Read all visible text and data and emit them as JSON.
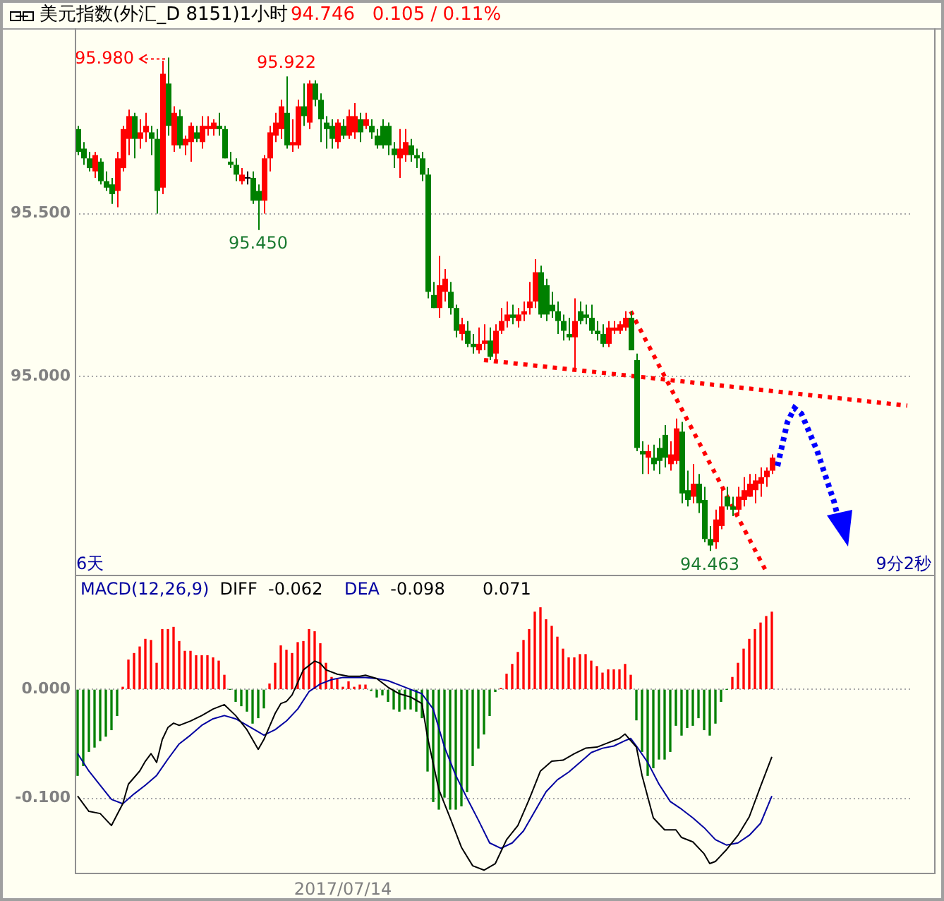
{
  "chart_data": [
    {
      "type": "candlestick",
      "title": "美元指数(外汇_D 8151)1小时",
      "subtitle": "94.746   0.105 / 0.11%",
      "categories": [
        null,
        null,
        null,
        null,
        null,
        null,
        null,
        null,
        null,
        null,
        null,
        null,
        null,
        null,
        null,
        null,
        null,
        null,
        null,
        null,
        null,
        null,
        null,
        null,
        null,
        null,
        null,
        null,
        null,
        null,
        null,
        null,
        null,
        null,
        null,
        null,
        null,
        null,
        null,
        null,
        null,
        null,
        null,
        null,
        null,
        null,
        null,
        null,
        null,
        null,
        null,
        null,
        null,
        null,
        null,
        null,
        null,
        null,
        null,
        null,
        null,
        null,
        null,
        null,
        null,
        null,
        null,
        null,
        null,
        null,
        null,
        null,
        null,
        null,
        null,
        null,
        null,
        null,
        null,
        null,
        null,
        null,
        null,
        null,
        null,
        null,
        null,
        null,
        null,
        null,
        null,
        null,
        null,
        null,
        null,
        null,
        null,
        null,
        null,
        null,
        null,
        null,
        null,
        null,
        null,
        null,
        null,
        null,
        null,
        null,
        null,
        null,
        null,
        null,
        null,
        null,
        null,
        null,
        null,
        null,
        null,
        null,
        null,
        null,
        null,
        null,
        null,
        null,
        null,
        null,
        null,
        null,
        null,
        null,
        null,
        null,
        null,
        null,
        null,
        null,
        null,
        null,
        null,
        null,
        null,
        null,
        null,
        null
      ],
      "ohlc": [
        [
          95.76,
          95.77,
          95.68,
          95.69
        ],
        [
          95.7,
          95.72,
          95.65,
          95.67
        ],
        [
          95.67,
          95.69,
          95.63,
          95.64
        ],
        [
          95.63,
          95.69,
          95.61,
          95.68
        ],
        [
          95.66,
          95.67,
          95.59,
          95.6
        ],
        [
          95.6,
          95.63,
          95.57,
          95.58
        ],
        [
          95.59,
          95.61,
          95.53,
          95.56
        ],
        [
          95.57,
          95.69,
          95.52,
          95.67
        ],
        [
          95.64,
          95.77,
          95.63,
          95.76
        ],
        [
          95.73,
          95.82,
          95.68,
          95.8
        ],
        [
          95.8,
          95.81,
          95.67,
          95.73
        ],
        [
          95.73,
          95.79,
          95.7,
          95.75
        ],
        [
          95.75,
          95.81,
          95.72,
          95.77
        ],
        [
          95.75,
          95.77,
          95.68,
          95.73
        ],
        [
          95.73,
          95.76,
          95.5,
          95.57
        ],
        [
          95.58,
          95.97,
          95.56,
          95.93
        ],
        [
          95.9,
          95.98,
          95.74,
          95.77
        ],
        [
          95.71,
          95.83,
          95.69,
          95.81
        ],
        [
          95.8,
          95.82,
          95.7,
          95.71
        ],
        [
          95.71,
          95.74,
          95.68,
          95.73
        ],
        [
          95.72,
          95.78,
          95.66,
          95.77
        ],
        [
          95.75,
          95.77,
          95.72,
          95.73
        ],
        [
          95.72,
          95.8,
          95.7,
          95.77
        ],
        [
          95.76,
          95.8,
          95.74,
          95.77
        ],
        [
          95.76,
          95.79,
          95.74,
          95.78
        ],
        [
          95.77,
          95.81,
          95.74,
          95.76
        ],
        [
          95.76,
          95.77,
          95.67,
          95.67
        ],
        [
          95.66,
          95.69,
          95.64,
          95.65
        ],
        [
          95.65,
          95.67,
          95.6,
          95.62
        ],
        [
          95.6,
          95.64,
          95.59,
          95.62
        ],
        [
          95.61,
          95.63,
          95.59,
          95.61
        ],
        [
          95.61,
          95.63,
          95.53,
          95.54
        ],
        [
          95.57,
          95.59,
          95.45,
          95.54
        ],
        [
          95.54,
          95.68,
          95.5,
          95.67
        ],
        [
          95.67,
          95.77,
          95.63,
          95.75
        ],
        [
          95.74,
          95.81,
          95.72,
          95.78
        ],
        [
          95.76,
          95.85,
          95.73,
          95.83
        ],
        [
          95.81,
          95.922,
          95.7,
          95.71
        ],
        [
          95.71,
          95.79,
          95.69,
          95.72
        ],
        [
          95.71,
          95.85,
          95.7,
          95.83
        ],
        [
          95.83,
          95.9,
          95.77,
          95.8
        ],
        [
          95.78,
          95.91,
          95.76,
          95.9
        ],
        [
          95.9,
          95.91,
          95.83,
          95.85
        ],
        [
          95.85,
          95.87,
          95.72,
          95.79
        ],
        [
          95.78,
          95.8,
          95.7,
          95.76
        ],
        [
          95.77,
          95.79,
          95.7,
          95.73
        ],
        [
          95.72,
          95.79,
          95.7,
          95.78
        ],
        [
          95.77,
          95.79,
          95.73,
          95.74
        ],
        [
          95.74,
          95.82,
          95.73,
          95.8
        ],
        [
          95.75,
          95.84,
          95.73,
          95.8
        ],
        [
          95.79,
          95.81,
          95.72,
          95.75
        ],
        [
          95.77,
          95.81,
          95.76,
          95.79
        ],
        [
          95.77,
          95.79,
          95.73,
          95.75
        ],
        [
          95.74,
          95.76,
          95.7,
          95.71
        ],
        [
          95.77,
          95.79,
          95.7,
          95.71
        ],
        [
          95.77,
          95.78,
          95.68,
          95.71
        ],
        [
          95.7,
          95.72,
          95.64,
          95.68
        ],
        [
          95.67,
          95.76,
          95.61,
          95.7
        ],
        [
          95.68,
          95.76,
          95.66,
          95.72
        ],
        [
          95.71,
          95.73,
          95.66,
          95.68
        ],
        [
          95.68,
          95.7,
          95.64,
          95.67
        ],
        [
          95.67,
          95.69,
          95.6,
          95.62
        ],
        [
          95.62,
          95.64,
          95.24,
          95.26
        ],
        [
          95.25,
          95.29,
          95.21,
          95.21
        ],
        [
          95.21,
          95.37,
          95.18,
          95.28
        ],
        [
          95.26,
          95.33,
          95.23,
          95.3
        ],
        [
          95.26,
          95.29,
          95.19,
          95.21
        ],
        [
          95.21,
          95.22,
          95.12,
          95.14
        ],
        [
          95.13,
          95.18,
          95.11,
          95.16
        ],
        [
          95.14,
          95.17,
          95.09,
          95.1
        ],
        [
          95.1,
          95.13,
          95.07,
          95.09
        ],
        [
          95.08,
          95.15,
          95.07,
          95.1
        ],
        [
          95.1,
          95.16,
          95.08,
          95.11
        ],
        [
          95.11,
          95.15,
          95.05,
          95.06
        ],
        [
          95.07,
          95.16,
          95.05,
          95.14
        ],
        [
          95.14,
          95.21,
          95.13,
          95.17
        ],
        [
          95.17,
          95.23,
          95.15,
          95.19
        ],
        [
          95.19,
          95.22,
          95.16,
          95.18
        ],
        [
          95.17,
          95.21,
          95.15,
          95.19
        ],
        [
          95.19,
          95.23,
          95.17,
          95.2
        ],
        [
          95.21,
          95.29,
          95.19,
          95.23
        ],
        [
          95.23,
          95.36,
          95.21,
          95.32
        ],
        [
          95.32,
          95.34,
          95.18,
          95.19
        ],
        [
          95.28,
          95.3,
          95.17,
          95.19
        ],
        [
          95.22,
          95.26,
          95.18,
          95.2
        ],
        [
          95.2,
          95.23,
          95.13,
          95.17
        ],
        [
          95.17,
          95.19,
          95.11,
          95.14
        ],
        [
          95.13,
          95.18,
          95.11,
          95.12
        ],
        [
          95.12,
          95.24,
          95.02,
          95.17
        ],
        [
          95.2,
          95.23,
          95.16,
          95.17
        ],
        [
          95.19,
          95.22,
          95.16,
          95.18
        ],
        [
          95.18,
          95.22,
          95.13,
          95.14
        ],
        [
          95.14,
          95.17,
          95.11,
          95.13
        ],
        [
          95.13,
          95.16,
          95.09,
          95.1
        ],
        [
          95.1,
          95.17,
          95.09,
          95.15
        ],
        [
          95.14,
          95.17,
          95.13,
          95.15
        ],
        [
          95.14,
          95.17,
          95.13,
          95.16
        ],
        [
          95.15,
          95.2,
          95.14,
          95.18
        ],
        [
          95.18,
          95.2,
          95.08,
          95.08
        ],
        [
          95.05,
          95.07,
          94.77,
          94.78
        ],
        [
          94.77,
          94.8,
          94.7,
          94.76
        ],
        [
          94.75,
          94.79,
          94.7,
          94.77
        ],
        [
          94.75,
          94.79,
          94.71,
          94.73
        ],
        [
          94.78,
          94.81,
          94.7,
          94.74
        ],
        [
          94.82,
          94.85,
          94.72,
          94.75
        ],
        [
          94.73,
          94.8,
          94.71,
          94.76
        ],
        [
          94.74,
          94.87,
          94.73,
          94.84
        ],
        [
          94.83,
          94.86,
          94.61,
          94.64
        ],
        [
          94.65,
          94.71,
          94.6,
          94.62
        ],
        [
          94.63,
          94.73,
          94.61,
          94.67
        ],
        [
          94.67,
          94.7,
          94.58,
          94.61
        ],
        [
          94.62,
          94.66,
          94.49,
          94.5
        ],
        [
          94.5,
          94.54,
          94.463,
          94.48
        ],
        [
          94.49,
          94.59,
          94.47,
          94.56
        ],
        [
          94.54,
          94.66,
          94.53,
          94.6
        ],
        [
          94.63,
          94.66,
          94.59,
          94.6
        ],
        [
          94.6,
          94.63,
          94.57,
          94.59
        ],
        [
          94.59,
          94.66,
          94.57,
          94.63
        ],
        [
          94.62,
          94.69,
          94.6,
          94.65
        ],
        [
          94.63,
          94.7,
          94.63,
          94.67
        ],
        [
          94.65,
          94.7,
          94.61,
          94.68
        ],
        [
          94.67,
          94.72,
          94.63,
          94.69
        ],
        [
          94.69,
          94.72,
          94.66,
          94.71
        ],
        [
          94.71,
          94.76,
          94.7,
          94.75
        ],
        null,
        null,
        null,
        null,
        null,
        null,
        null,
        null,
        null,
        null,
        null,
        null,
        null,
        null,
        null,
        null,
        null,
        null,
        null,
        null,
        null,
        null,
        null,
        null
      ],
      "colors": [
        "#008000",
        "#008000",
        "#008000",
        "#ff0000",
        "#008000",
        "#008000",
        "#008000",
        "#ff0000",
        "#ff0000",
        "#ff0000",
        "#008000",
        "#ff0000",
        "#ff0000",
        "#008000",
        "#008000",
        "#ff0000",
        "#008000",
        "#ff0000",
        "#008000",
        "#ff0000",
        "#ff0000",
        "#008000",
        "#ff0000",
        "#ff0000",
        "#ff0000",
        "#008000",
        "#008000",
        "#008000",
        "#008000",
        "#ff0000",
        "#000000",
        "#008000",
        "#008000",
        "#ff0000",
        "#ff0000",
        "#ff0000",
        "#ff0000",
        "#008000",
        "#ff0000",
        "#ff0000",
        "#008000",
        "#ff0000",
        "#008000",
        "#008000",
        "#008000",
        "#008000",
        "#ff0000",
        "#008000",
        "#ff0000",
        "#ff0000",
        "#008000",
        "#ff0000",
        "#008000",
        "#008000",
        "#008000",
        "#008000",
        "#008000",
        "#ff0000",
        "#ff0000",
        "#008000",
        "#008000",
        "#008000",
        "#008000",
        "#008000",
        "#ff0000",
        "#ff0000",
        "#008000",
        "#008000",
        "#ff0000",
        "#008000",
        "#008000",
        "#ff0000",
        "#ff0000",
        "#008000",
        "#ff0000",
        "#ff0000",
        "#ff0000",
        "#008000",
        "#ff0000",
        "#ff0000",
        "#ff0000",
        "#ff0000",
        "#008000",
        "#008000",
        "#008000",
        "#008000",
        "#008000",
        "#008000",
        "#ff0000",
        "#008000",
        "#008000",
        "#008000",
        "#008000",
        "#008000",
        "#ff0000",
        "#ff0000",
        "#ff0000",
        "#ff0000",
        "#008000",
        "#008000",
        "#008000",
        "#ff0000",
        "#008000",
        "#008000",
        "#008000",
        "#ff0000",
        "#ff0000",
        "#008000",
        "#008000",
        "#ff0000",
        "#008000",
        "#008000",
        "#008000",
        "#ff0000",
        "#ff0000",
        "#008000",
        "#008000",
        "#ff0000",
        "#ff0000",
        "#ff0000",
        "#ff0000",
        "#ff0000",
        "#ff0000",
        "#ff0000",
        null,
        null,
        null,
        null,
        null,
        null,
        null,
        null,
        null,
        null,
        null,
        null,
        null,
        null,
        null,
        null,
        null,
        null,
        null,
        null,
        null,
        null,
        null,
        null
      ],
      "ylim": [
        94.39,
        96.07
      ],
      "yticks": [
        {
          "value": 95.5,
          "label": "95.500"
        },
        {
          "value": 95,
          "label": "95.000"
        }
      ],
      "grid": "y",
      "tick_labels": "y",
      "series": [
        {
          "type": "line",
          "color": "#ff0000",
          "line_style": "dotted",
          "values": [
            null,
            null,
            null,
            null,
            null,
            null,
            null,
            null,
            null,
            null,
            null,
            null,
            null,
            null,
            null,
            null,
            null,
            null,
            null,
            null,
            null,
            null,
            null,
            null,
            null,
            null,
            null,
            null,
            null,
            null,
            null,
            null,
            null,
            null,
            null,
            null,
            null,
            null,
            null,
            null,
            null,
            null,
            null,
            null,
            null,
            null,
            null,
            null,
            null,
            null,
            null,
            null,
            null,
            null,
            null,
            null,
            null,
            null,
            null,
            null,
            null,
            null,
            null,
            null,
            null,
            null,
            null,
            null,
            null,
            null,
            null,
            null,
            95.05,
            null,
            null,
            null,
            null,
            null,
            null,
            null,
            null,
            null,
            null,
            null,
            null,
            null,
            null,
            null,
            null,
            null,
            null,
            null,
            null,
            null,
            null,
            null,
            null,
            null,
            null,
            null,
            null,
            null,
            null,
            null,
            null,
            null,
            null,
            null,
            null,
            null,
            null,
            null,
            null,
            null,
            null,
            null,
            null,
            null,
            null,
            null,
            null,
            null,
            null,
            null,
            null,
            null,
            null,
            null,
            null,
            null,
            null,
            null,
            null,
            null,
            null,
            null,
            null,
            null,
            null,
            null,
            null,
            null,
            null,
            null,
            null,
            null,
            null,
            94.91
          ]
        },
        {
          "type": "line",
          "color": "#ff0000",
          "line_style": "dotted",
          "values": [
            null,
            null,
            null,
            null,
            null,
            null,
            null,
            null,
            null,
            null,
            null,
            null,
            null,
            null,
            null,
            null,
            null,
            null,
            null,
            null,
            null,
            null,
            null,
            null,
            null,
            null,
            null,
            null,
            null,
            null,
            null,
            null,
            null,
            null,
            null,
            null,
            null,
            null,
            null,
            null,
            null,
            null,
            null,
            null,
            null,
            null,
            null,
            null,
            null,
            null,
            null,
            null,
            null,
            null,
            null,
            null,
            null,
            null,
            null,
            null,
            null,
            null,
            null,
            null,
            null,
            null,
            null,
            null,
            null,
            null,
            null,
            null,
            null,
            null,
            null,
            null,
            null,
            null,
            null,
            null,
            null,
            null,
            null,
            null,
            null,
            null,
            null,
            null,
            null,
            null,
            null,
            null,
            null,
            null,
            null,
            null,
            null,
            null,
            95.2,
            null,
            null,
            null,
            null,
            null,
            null,
            null,
            null,
            null,
            null,
            null,
            null,
            null,
            null,
            null,
            null,
            null,
            null,
            null,
            null,
            null,
            null,
            null,
            94.4,
            null,
            null,
            null,
            null,
            null,
            null,
            null,
            null,
            null,
            null,
            null,
            null,
            null,
            null,
            null,
            null,
            null,
            null,
            null,
            null,
            null,
            null,
            null,
            null,
            null
          ]
        }
      ],
      "annotations": [
        "95.980",
        {
          "text": "95.922",
          "y": 95.922
        },
        {
          "text": "95.450",
          "y": 95.45
        },
        {
          "text": "94.463",
          "y": 94.463
        },
        "6天",
        "9分2秒"
      ]
    },
    {
      "type": "bar",
      "title": "MACD(12,26,9)",
      "categories": [
        null,
        null,
        null,
        null,
        null,
        null,
        null,
        null,
        null,
        null,
        null,
        null,
        null,
        null,
        null,
        null,
        null,
        null,
        null,
        null,
        null,
        null,
        null,
        null,
        null,
        null,
        null,
        null,
        null,
        null,
        null,
        null,
        null,
        null,
        null,
        null,
        null,
        null,
        null,
        null,
        null,
        null,
        null,
        null,
        null,
        null,
        null,
        "2017/07/14",
        null,
        null,
        null,
        null,
        null,
        null,
        null,
        null,
        null,
        null,
        null,
        null,
        null,
        null,
        null,
        null,
        null,
        null,
        null,
        null,
        null,
        null,
        null,
        null,
        null,
        null,
        null,
        null,
        null,
        null,
        null,
        null,
        null,
        null,
        null,
        null,
        null,
        null,
        null,
        null,
        null,
        null,
        null,
        null,
        null,
        null,
        null,
        null,
        null,
        null,
        null,
        null,
        null,
        null,
        null,
        null,
        null,
        null,
        null,
        null,
        null,
        null,
        null,
        null,
        null,
        null,
        null,
        null,
        null,
        null,
        null,
        null,
        null,
        null,
        null,
        null,
        null,
        null,
        null,
        null,
        null,
        null,
        null,
        null,
        null,
        null,
        null,
        null,
        null,
        null,
        null,
        null,
        null,
        null,
        null,
        null,
        null,
        null,
        null,
        null
      ],
      "series": [
        {
          "type": "bar",
          "values": [
            -0.079,
            -0.07,
            -0.057,
            -0.053,
            -0.047,
            -0.043,
            -0.037,
            -0.024,
            0.002,
            0.027,
            0.033,
            0.039,
            0.046,
            0.045,
            0.024,
            0.055,
            0.055,
            0.057,
            0.044,
            0.035,
            0.035,
            0.031,
            0.031,
            0.031,
            0.029,
            0.026,
            0.013,
            0,
            -0.011,
            -0.015,
            -0.02,
            -0.031,
            -0.026,
            -0.017,
            0.005,
            0.024,
            0.04,
            0.036,
            0.033,
            0.043,
            0.044,
            0.055,
            0.053,
            0.042,
            0.024,
            0.011,
            0.009,
            0.002,
            0.007,
            0.002,
            0.004,
            0.004,
            -0.001,
            -0.007,
            -0.005,
            -0.011,
            -0.018,
            -0.02,
            -0.018,
            -0.018,
            -0.02,
            -0.026,
            -0.075,
            -0.103,
            -0.11,
            -0.099,
            -0.11,
            -0.11,
            -0.107,
            -0.094,
            -0.07,
            -0.054,
            -0.041,
            -0.024,
            -0.002,
            0.001,
            0.014,
            0.023,
            0.034,
            0.045,
            0.055,
            0.071,
            0.075,
            0.064,
            0.058,
            0.048,
            0.037,
            0.029,
            0.029,
            0.032,
            0.032,
            0.026,
            0.021,
            0.015,
            0.018,
            0.018,
            0.018,
            0.023,
            0.013,
            -0.028,
            -0.057,
            -0.079,
            -0.072,
            -0.064,
            -0.064,
            -0.057,
            -0.033,
            -0.042,
            -0.035,
            -0.033,
            -0.026,
            -0.037,
            -0.042,
            -0.031,
            -0.011,
            0,
            0.011,
            0.024,
            0.037,
            0.046,
            0.055,
            0.061,
            0.067,
            0.071,
            null,
            null,
            null,
            null,
            null,
            null,
            null,
            null,
            null,
            null,
            null,
            null,
            null,
            null,
            null,
            null,
            null,
            null,
            null,
            null,
            null,
            null,
            null,
            null
          ],
          "colors": [
            "#008000",
            "#008000",
            "#008000",
            "#008000",
            "#008000",
            "#008000",
            "#008000",
            "#008000",
            "#ff0000",
            "#ff0000",
            "#ff0000",
            "#ff0000",
            "#ff0000",
            "#ff0000",
            "#ff0000",
            "#ff0000",
            "#ff0000",
            "#ff0000",
            "#ff0000",
            "#ff0000",
            "#ff0000",
            "#ff0000",
            "#ff0000",
            "#ff0000",
            "#ff0000",
            "#ff0000",
            "#ff0000",
            "#008000",
            "#008000",
            "#008000",
            "#008000",
            "#008000",
            "#008000",
            "#008000",
            "#ff0000",
            "#ff0000",
            "#ff0000",
            "#ff0000",
            "#ff0000",
            "#ff0000",
            "#ff0000",
            "#ff0000",
            "#ff0000",
            "#ff0000",
            "#ff0000",
            "#ff0000",
            "#ff0000",
            "#ff0000",
            "#ff0000",
            "#ff0000",
            "#ff0000",
            "#ff0000",
            "#008000",
            "#008000",
            "#008000",
            "#008000",
            "#008000",
            "#008000",
            "#008000",
            "#008000",
            "#008000",
            "#008000",
            "#008000",
            "#008000",
            "#008000",
            "#008000",
            "#008000",
            "#008000",
            "#008000",
            "#008000",
            "#008000",
            "#008000",
            "#008000",
            "#008000",
            "#008000",
            "#ff0000",
            "#ff0000",
            "#ff0000",
            "#ff0000",
            "#ff0000",
            "#ff0000",
            "#ff0000",
            "#ff0000",
            "#ff0000",
            "#ff0000",
            "#ff0000",
            "#ff0000",
            "#ff0000",
            "#ff0000",
            "#ff0000",
            "#ff0000",
            "#ff0000",
            "#ff0000",
            "#ff0000",
            "#ff0000",
            "#ff0000",
            "#ff0000",
            "#ff0000",
            "#ff0000",
            "#008000",
            "#008000",
            "#008000",
            "#008000",
            "#008000",
            "#008000",
            "#008000",
            "#008000",
            "#008000",
            "#008000",
            "#008000",
            "#008000",
            "#008000",
            "#008000",
            "#008000",
            "#008000",
            "#008000",
            "#ff0000",
            "#ff0000",
            "#ff0000",
            "#ff0000",
            "#ff0000",
            "#ff0000",
            "#ff0000",
            "#ff0000",
            null,
            null,
            null,
            null,
            null,
            null,
            null,
            null,
            null,
            null,
            null,
            null,
            null,
            null,
            null,
            null,
            null,
            null,
            null,
            null,
            null,
            null,
            null,
            null
          ]
        },
        {
          "type": "line",
          "name": "DIFF",
          "color": "#000000",
          "values": [
            -0.098,
            null,
            -0.112,
            null,
            -0.114,
            null,
            -0.125,
            null,
            -0.105,
            -0.087,
            null,
            -0.075,
            -0.066,
            -0.059,
            -0.067,
            -0.046,
            -0.035,
            -0.031,
            -0.033,
            null,
            -0.029,
            null,
            -0.024,
            null,
            -0.018,
            null,
            -0.014,
            null,
            -0.024,
            null,
            -0.037,
            null,
            -0.055,
            -0.046,
            null,
            -0.022,
            -0.013,
            -0.011,
            -0.005,
            null,
            0.018,
            null,
            0.026,
            0.024,
            0.018,
            null,
            0.014,
            null,
            0.012,
            null,
            0.012,
            0.013,
            null,
            0.01,
            null,
            0.002,
            null,
            -0.004,
            null,
            -0.007,
            null,
            -0.013,
            -0.044,
            null,
            -0.092,
            null,
            -0.118,
            null,
            -0.145,
            null,
            -0.162,
            null,
            -0.166,
            null,
            -0.16,
            null,
            -0.138,
            null,
            -0.125,
            null,
            -0.101,
            null,
            -0.075,
            null,
            -0.066,
            null,
            -0.065,
            null,
            -0.059,
            null,
            -0.054,
            null,
            -0.053,
            null,
            -0.049,
            null,
            -0.045,
            -0.041,
            null,
            -0.053,
            -0.079,
            null,
            -0.118,
            null,
            -0.129,
            null,
            -0.129,
            -0.136,
            null,
            -0.14,
            null,
            -0.151,
            -0.16,
            -0.158,
            null,
            -0.147,
            null,
            -0.134,
            null,
            -0.117,
            null,
            -0.089,
            null,
            -0.062,
            null,
            null,
            null,
            null,
            null,
            null,
            null,
            null,
            null,
            null,
            null,
            null,
            null,
            null,
            null,
            null,
            null,
            null,
            null,
            null,
            null,
            null,
            null,
            null
          ]
        },
        {
          "type": "line",
          "name": "DEA",
          "color": "#0000a0",
          "values": [
            -0.059,
            null,
            -0.075,
            null,
            -0.088,
            null,
            -0.101,
            null,
            -0.105,
            null,
            -0.096,
            null,
            -0.088,
            null,
            -0.079,
            null,
            -0.064,
            null,
            -0.05,
            null,
            -0.042,
            null,
            -0.033,
            null,
            -0.027,
            null,
            -0.024,
            null,
            -0.027,
            null,
            -0.033,
            null,
            -0.039,
            -0.042,
            null,
            -0.037,
            null,
            -0.029,
            null,
            -0.018,
            null,
            -0.002,
            null,
            0.005,
            null,
            0.009,
            null,
            0.011,
            null,
            0.011,
            null,
            0.011,
            null,
            0.01,
            null,
            0.008,
            null,
            0.004,
            null,
            0,
            null,
            -0.004,
            null,
            -0.018,
            null,
            -0.053,
            null,
            -0.079,
            null,
            -0.1,
            null,
            -0.12,
            null,
            -0.141,
            null,
            -0.146,
            null,
            -0.141,
            null,
            -0.13,
            null,
            -0.112,
            null,
            -0.094,
            null,
            -0.083,
            null,
            -0.076,
            null,
            -0.067,
            null,
            -0.058,
            null,
            -0.054,
            null,
            -0.052,
            null,
            -0.047,
            -0.045,
            -0.052,
            null,
            -0.067,
            null,
            -0.087,
            null,
            -0.103,
            null,
            -0.11,
            null,
            -0.118,
            null,
            -0.127,
            null,
            -0.138,
            null,
            -0.143,
            null,
            -0.141,
            null,
            -0.134,
            null,
            -0.123,
            null,
            -0.098,
            null,
            null,
            null,
            null,
            null,
            null,
            null,
            null,
            null,
            null,
            null,
            null,
            null,
            null,
            null,
            null,
            null,
            null,
            null,
            null,
            null,
            null,
            null,
            null
          ]
        }
      ],
      "ylim": [
        -0.171,
        0.104
      ],
      "yticks": [
        {
          "value": 0,
          "label": "0.000"
        },
        {
          "value": -0.1,
          "label": "-0.100"
        }
      ],
      "grid": "y",
      "legend": "top left",
      "annotations": [
        "-0.062",
        "-0.098",
        "0.071"
      ]
    }
  ]
}
